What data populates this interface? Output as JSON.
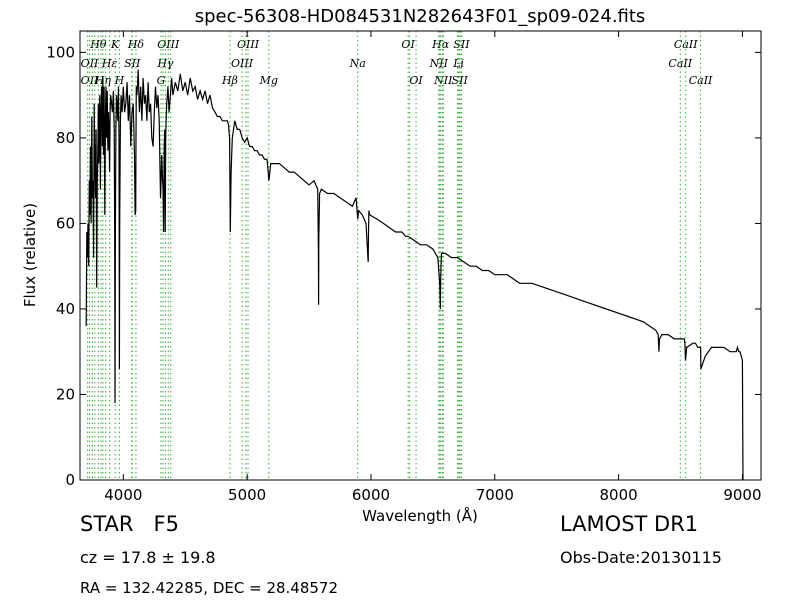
{
  "chart_data": {
    "type": "line",
    "title": "spec-56308-HD084531N282643F01_sp09-024.fits",
    "xlabel": "Wavelength (Å)",
    "ylabel": "Flux (relative)",
    "xlim": [
      3650,
      9150
    ],
    "ylim": [
      0,
      105
    ],
    "xticks": [
      4000,
      5000,
      6000,
      7000,
      8000,
      9000
    ],
    "yticks": [
      0,
      20,
      40,
      60,
      80,
      100
    ],
    "grid": false,
    "line_color": "#000000",
    "marker_color": "#33aa33",
    "series": [
      {
        "x": [
          3700,
          3705,
          3710,
          3715,
          3720,
          3725,
          3730,
          3735,
          3740,
          3745,
          3750,
          3755,
          3760,
          3765,
          3770,
          3775,
          3780,
          3785,
          3790,
          3795,
          3798,
          3802,
          3806,
          3810,
          3815,
          3820,
          3825,
          3830,
          3835,
          3840,
          3845,
          3850,
          3855,
          3860,
          3865,
          3870,
          3875,
          3880,
          3885,
          3889,
          3893,
          3898,
          3905,
          3912,
          3920,
          3926,
          3930,
          3933,
          3936,
          3940,
          3945,
          3950,
          3955,
          3960,
          3965,
          3968,
          3971,
          3976,
          3982,
          3990,
          4000,
          4010,
          4020,
          4030,
          4040,
          4050,
          4060,
          4070,
          4080,
          4090,
          4095,
          4100,
          4102,
          4105,
          4110,
          4120,
          4130,
          4140,
          4150,
          4160,
          4170,
          4180,
          4190,
          4200,
          4210,
          4220,
          4230,
          4240,
          4250,
          4260,
          4270,
          4280,
          4290,
          4300,
          4305,
          4310,
          4315,
          4320,
          4325,
          4330,
          4335,
          4338,
          4340,
          4342,
          4345,
          4350,
          4360,
          4370,
          4380,
          4390,
          4400,
          4420,
          4440,
          4460,
          4480,
          4500,
          4520,
          4540,
          4560,
          4580,
          4600,
          4620,
          4640,
          4660,
          4680,
          4700,
          4720,
          4740,
          4760,
          4780,
          4800,
          4820,
          4840,
          4850,
          4855,
          4858,
          4861,
          4864,
          4870,
          4880,
          4900,
          4920,
          4940,
          4960,
          4980,
          5000,
          5020,
          5040,
          5060,
          5080,
          5100,
          5120,
          5140,
          5160,
          5170,
          5175,
          5180,
          5190,
          5220,
          5260,
          5300,
          5340,
          5380,
          5420,
          5460,
          5500,
          5540,
          5570,
          5575,
          5577,
          5579,
          5585,
          5600,
          5650,
          5700,
          5750,
          5800,
          5850,
          5880,
          5890,
          5893,
          5896,
          5900,
          5930,
          5960,
          5975,
          5978,
          5980,
          5983,
          5990,
          6050,
          6100,
          6150,
          6200,
          6250,
          6280,
          6300,
          6350,
          6400,
          6450,
          6500,
          6540,
          6555,
          6560,
          6563,
          6566,
          6570,
          6580,
          6600,
          6650,
          6700,
          6750,
          6800,
          6850,
          6900,
          6950,
          7000,
          7100,
          7200,
          7300,
          7400,
          7500,
          7600,
          7700,
          7800,
          7900,
          8000,
          8100,
          8200,
          8250,
          8300,
          8320,
          8325,
          8330,
          8350,
          8400,
          8450,
          8500,
          8530,
          8535,
          8540,
          8550,
          8600,
          8620,
          8640,
          8660,
          8662,
          8665,
          8700,
          8750,
          8800,
          8850,
          8900,
          8950,
          8960,
          8970,
          8980,
          8990,
          9000,
          9005
        ],
        "y": [
          36,
          58,
          52,
          60,
          50,
          70,
          62,
          78,
          60,
          85,
          66,
          70,
          52,
          88,
          74,
          66,
          82,
          45,
          70,
          80,
          88,
          74,
          82,
          90,
          68,
          86,
          92,
          78,
          94,
          76,
          92,
          62,
          84,
          92,
          80,
          91,
          77,
          86,
          80,
          72,
          86,
          90,
          88,
          86,
          91,
          82,
          58,
          18,
          58,
          82,
          90,
          88,
          84,
          92,
          80,
          26,
          60,
          84,
          90,
          86,
          92,
          86,
          88,
          93,
          84,
          90,
          78,
          86,
          88,
          76,
          62,
          63,
          80,
          92,
          90,
          96,
          86,
          92,
          84,
          94,
          88,
          90,
          84,
          93,
          86,
          88,
          80,
          78,
          86,
          92,
          87,
          90,
          84,
          66,
          70,
          76,
          72,
          68,
          58,
          78,
          82,
          58,
          66,
          80,
          84,
          88,
          92,
          86,
          90,
          94,
          90,
          93,
          91,
          95,
          91,
          93,
          90,
          94,
          91,
          92,
          89,
          91,
          89,
          91,
          88,
          90,
          87,
          86,
          85,
          85,
          84,
          84,
          84,
          83,
          81,
          80,
          70,
          58,
          72,
          80,
          84,
          82,
          82,
          80,
          79,
          80,
          78,
          78,
          77,
          77,
          76,
          76,
          75,
          75,
          72,
          70,
          71,
          74,
          74,
          74,
          73,
          72,
          72,
          71,
          70,
          69,
          70,
          68,
          54,
          41,
          56,
          67,
          68,
          67,
          67,
          66,
          65,
          64,
          66,
          62,
          61,
          62,
          63,
          62,
          60,
          52,
          51,
          58,
          63,
          62,
          61,
          60,
          59,
          58,
          58,
          57,
          57,
          56,
          55,
          55,
          54,
          52,
          46,
          40,
          47,
          51,
          53,
          53,
          53,
          52,
          52,
          51,
          50,
          50,
          49,
          49,
          48,
          48,
          46,
          46,
          45,
          44,
          43,
          42,
          41,
          40,
          39,
          38,
          37,
          36,
          35,
          34,
          30,
          33,
          34,
          34,
          33,
          33,
          33,
          32,
          28,
          31,
          32,
          32,
          31,
          31,
          31,
          26,
          29,
          31,
          31,
          31,
          30,
          30,
          31,
          30,
          30,
          29,
          28,
          0
        ]
      }
    ],
    "line_markers": {
      "top_row_1": [
        {
          "label": "Hθ",
          "x": 3798
        },
        {
          "label": "K",
          "x": 3934
        },
        {
          "label": "Hδ",
          "x": 4102
        },
        {
          "label": "OIII",
          "x": 4363
        },
        {
          "label": "OIII",
          "x": 5007
        },
        {
          "label": "OI",
          "x": 6300
        },
        {
          "label": "Hα",
          "x": 6563
        },
        {
          "label": "SII",
          "x": 6731
        },
        {
          "label": "CaII",
          "x": 8542
        }
      ],
      "top_row_2": [
        {
          "label": "OII",
          "x": 3727
        },
        {
          "label": "Hε",
          "x": 3889
        },
        {
          "label": "SII",
          "x": 4072
        },
        {
          "label": "Hγ",
          "x": 4340
        },
        {
          "label": "OIII",
          "x": 4959
        },
        {
          "label": "Na",
          "x": 5893
        },
        {
          "label": "NII",
          "x": 6548
        },
        {
          "label": "Li",
          "x": 6708
        },
        {
          "label": "CaII",
          "x": 8498
        }
      ],
      "top_row_3": [
        {
          "label": "OII",
          "x": 3727
        },
        {
          "label": "Hη",
          "x": 3835
        },
        {
          "label": "H",
          "x": 3968
        },
        {
          "label": "G",
          "x": 4304
        },
        {
          "label": "Hβ",
          "x": 4861
        },
        {
          "label": "Mg",
          "x": 5175
        },
        {
          "label": "OI",
          "x": 6364
        },
        {
          "label": "NII",
          "x": 6584
        },
        {
          "label": "SII",
          "x": 6717
        },
        {
          "label": "CaII",
          "x": 8662
        }
      ],
      "extra_lines": [
        3712,
        3750,
        3770,
        3820,
        3858,
        4068,
        4320,
        4383,
        4990,
        6312,
        6555,
        6577,
        6700,
        6720
      ]
    }
  },
  "info": {
    "object_class": "STAR",
    "subclass": "F5",
    "cz": "cz = 17.8 ± 19.8",
    "radec": "RA = 132.42285, DEC = 28.48572",
    "survey": "LAMOST DR1",
    "obs_date": "Obs-Date:20130115"
  }
}
